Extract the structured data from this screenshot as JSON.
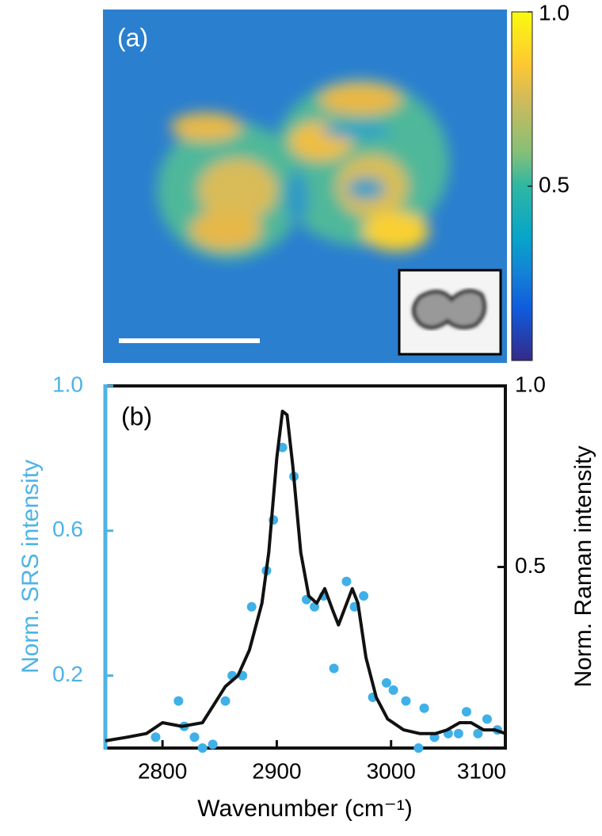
{
  "image": {
    "label": "(a)",
    "colorbar": {
      "lim": [
        0,
        1
      ],
      "ticks": [
        {
          "value": 1,
          "label": "1.0"
        },
        0.5
      ]
    }
  },
  "chart_data": {
    "type": "combo",
    "label": "(b)",
    "xlabel": "Wavenumber (cm⁻¹)",
    "ylabel": "Norm. SRS intensity",
    "y2label": "Norm. Raman intensity",
    "xlim": [
      2750,
      3100
    ],
    "xticks": [
      2800,
      2900,
      3000,
      3100
    ],
    "ylim": [
      0,
      1
    ],
    "yticks": [
      0.2,
      0.6,
      {
        "value": 1,
        "label": "1.0"
      }
    ],
    "y2lim": [
      0,
      1
    ],
    "y2ticks": [
      0.5,
      {
        "value": 1,
        "label": "1.0"
      }
    ],
    "ycolor": "#4db3e6",
    "series": [
      {
        "type": "scatter",
        "color": "#3fb0e8",
        "axis": "y",
        "x": [
          2794,
          2814,
          2819,
          2828,
          2835,
          2844,
          2855,
          2861,
          2870,
          2878,
          2891,
          2897,
          2905,
          2915,
          2926,
          2933,
          2941,
          2950,
          2961,
          2968,
          2976,
          2984,
          2996,
          3002,
          3013,
          3024,
          3029,
          3038,
          3050,
          3059,
          3066,
          3076,
          3084,
          3093
        ],
        "values": [
          0.03,
          0.13,
          0.06,
          0.03,
          0.0,
          0.01,
          0.13,
          0.2,
          0.2,
          0.39,
          0.49,
          0.63,
          0.83,
          0.75,
          0.41,
          0.39,
          0.42,
          0.22,
          0.46,
          0.39,
          0.42,
          0.14,
          0.18,
          0.16,
          0.13,
          0.0,
          0.11,
          0.03,
          0.04,
          0.04,
          0.1,
          0.04,
          0.08,
          0.05
        ]
      },
      {
        "type": "line",
        "color": "#111111",
        "axis": "y2",
        "x": [
          2750,
          2769,
          2786,
          2800,
          2817,
          2835,
          2845,
          2855,
          2866,
          2876,
          2887,
          2893,
          2900,
          2905,
          2909,
          2914,
          2921,
          2928,
          2935,
          2942,
          2949,
          2954,
          2960,
          2966,
          2971,
          2978,
          2987,
          2997,
          3011,
          3025,
          3039,
          3049,
          3060,
          3070,
          3081,
          3091,
          3100
        ],
        "values": [
          0.02,
          0.03,
          0.04,
          0.07,
          0.06,
          0.07,
          0.12,
          0.17,
          0.2,
          0.27,
          0.4,
          0.54,
          0.8,
          0.93,
          0.92,
          0.78,
          0.54,
          0.42,
          0.4,
          0.44,
          0.38,
          0.34,
          0.39,
          0.44,
          0.4,
          0.25,
          0.14,
          0.08,
          0.05,
          0.04,
          0.04,
          0.05,
          0.07,
          0.07,
          0.05,
          0.05,
          0.04
        ]
      }
    ]
  }
}
